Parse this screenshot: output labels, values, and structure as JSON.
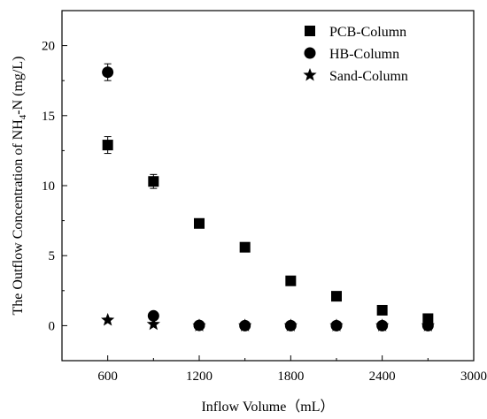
{
  "chart_data": {
    "type": "scatter",
    "title": "",
    "xlabel": "Inflow Volume（mL）",
    "ylabel_prefix": "The Outflow Concentration of NH",
    "ylabel_sub": "4",
    "ylabel_suffix": "-N (mg/L)",
    "xlim": [
      300,
      3000
    ],
    "ylim": [
      -2.5,
      22.5
    ],
    "x_ticks": [
      600,
      1200,
      1800,
      2400,
      3000
    ],
    "x_tick_labels": [
      "600",
      "1200",
      "1800",
      "2400",
      "3000"
    ],
    "y_ticks": [
      0,
      5,
      10,
      15,
      20
    ],
    "y_tick_labels": [
      "0",
      "5",
      "10",
      "15",
      "20"
    ],
    "grid": false,
    "legend_position": "top-right",
    "series": [
      {
        "name": "PCB-Column",
        "marker": "square",
        "x": [
          600,
          900,
          1200,
          1500,
          1800,
          2100,
          2400,
          2700
        ],
        "y": [
          12.9,
          10.3,
          7.3,
          5.6,
          3.2,
          2.1,
          1.1,
          0.5
        ],
        "err": [
          0.6,
          0.5,
          0,
          0,
          0,
          0,
          0,
          0
        ]
      },
      {
        "name": "HB-Column",
        "marker": "circle",
        "x": [
          600,
          900,
          1200,
          1500,
          1800,
          2100,
          2400,
          2700
        ],
        "y": [
          18.1,
          0.7,
          0.02,
          0.0,
          0.0,
          0.0,
          0.0,
          0.0
        ],
        "err": [
          0.6,
          0,
          0,
          0,
          0,
          0,
          0,
          0
        ]
      },
      {
        "name": "Sand-Column",
        "marker": "star",
        "x": [
          600,
          900,
          1200,
          1500,
          1800,
          2100,
          2400,
          2700
        ],
        "y": [
          0.4,
          0.1,
          0.0,
          0.0,
          0.0,
          0.0,
          0.0,
          0.0
        ],
        "err": [
          0,
          0,
          0,
          0,
          0,
          0,
          0,
          0
        ]
      }
    ]
  }
}
